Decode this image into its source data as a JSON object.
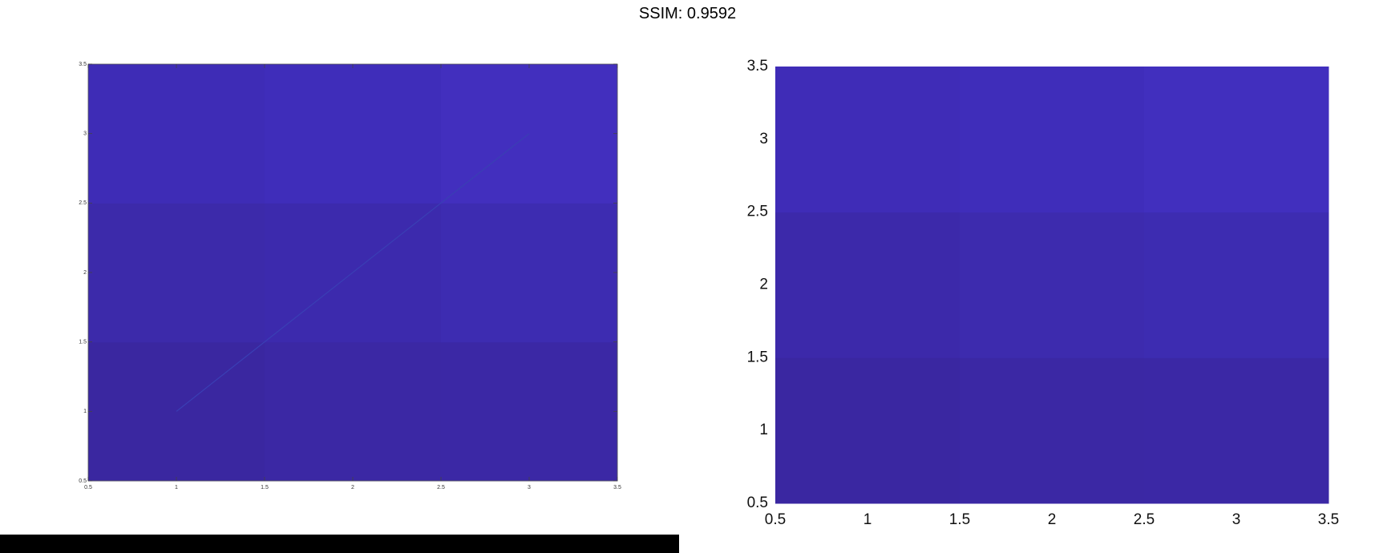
{
  "title": "SSIM: 0.9592",
  "colors": {
    "background_bar": "#000000"
  },
  "chart_data": [
    {
      "type": "heatmap",
      "x_centers": [
        1,
        2,
        3
      ],
      "y_centers": [
        1,
        2,
        3
      ],
      "xlim": [
        0.5,
        3.5
      ],
      "ylim": [
        0.5,
        3.5
      ],
      "x_ticks": [
        "0.5",
        "1",
        "1.5",
        "2",
        "2.5",
        "3",
        "3.5"
      ],
      "y_ticks": [
        "0.5",
        "1",
        "1.5",
        "2",
        "2.5",
        "3",
        "3.5"
      ],
      "cell_colors": [
        [
          "#3a27a0",
          "#3b28a4",
          "#3b28a5"
        ],
        [
          "#3c2aaa",
          "#3c2aad",
          "#3d2cb1"
        ],
        [
          "#3e2cb6",
          "#3f2dba",
          "#422fbe"
        ]
      ],
      "line": {
        "x": [
          1,
          3
        ],
        "y": [
          1,
          3
        ],
        "color": "#3a3fb4"
      }
    },
    {
      "type": "heatmap",
      "x_centers": [
        1,
        2,
        3
      ],
      "y_centers": [
        1,
        2,
        3
      ],
      "xlim": [
        0.5,
        3.5
      ],
      "ylim": [
        0.5,
        3.5
      ],
      "x_ticks": [
        "0.5",
        "1",
        "1.5",
        "2",
        "2.5",
        "3",
        "3.5"
      ],
      "y_ticks": [
        "0.5",
        "1",
        "1.5",
        "2",
        "2.5",
        "3",
        "3.5"
      ],
      "cell_colors": [
        [
          "#3a27a1",
          "#3b28a4",
          "#3b28a5"
        ],
        [
          "#3c29aa",
          "#3d2bae",
          "#3d2cb1"
        ],
        [
          "#3f2cb7",
          "#3f2dba",
          "#412fbe"
        ]
      ]
    }
  ]
}
